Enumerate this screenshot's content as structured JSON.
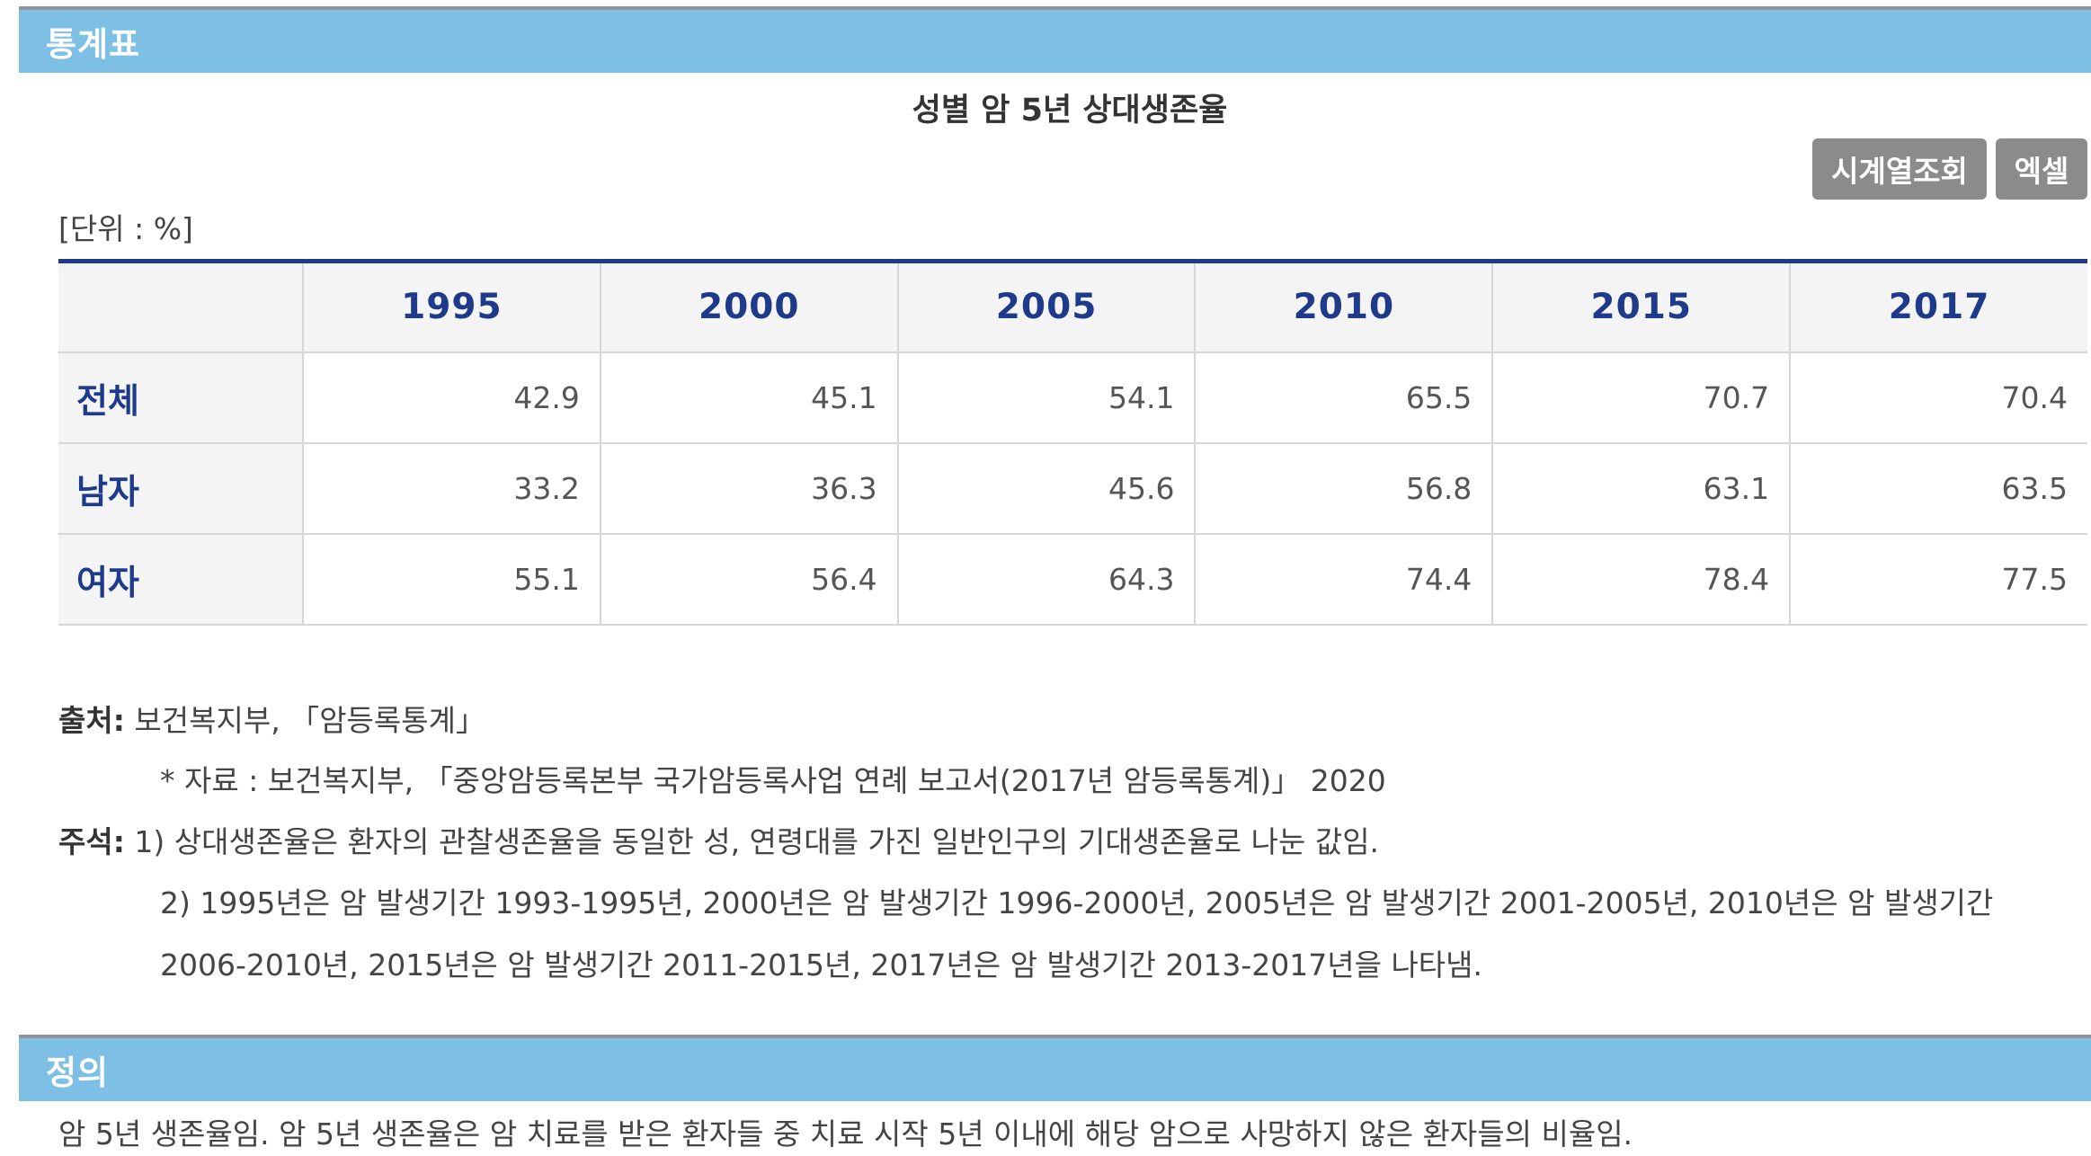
{
  "section_stats": {
    "label": "통계표"
  },
  "table_title": "성별 암 5년 상대생존율",
  "buttons": {
    "timeseries": "시계열조회",
    "excel": "엑셀"
  },
  "unit": "[단위 : %]",
  "table": {
    "headers": [
      "",
      "1995",
      "2000",
      "2005",
      "2010",
      "2015",
      "2017"
    ],
    "rows": [
      {
        "label": "전체",
        "values": [
          "42.9",
          "45.1",
          "54.1",
          "65.5",
          "70.7",
          "70.4"
        ]
      },
      {
        "label": "남자",
        "values": [
          "33.2",
          "36.3",
          "45.6",
          "56.8",
          "63.1",
          "63.5"
        ]
      },
      {
        "label": "여자",
        "values": [
          "55.1",
          "56.4",
          "64.3",
          "74.4",
          "78.4",
          "77.5"
        ]
      }
    ]
  },
  "notes": {
    "source_label": "출처:",
    "source_text": " 보건복지부, 「암등록통계」",
    "source_detail": "* 자료 : 보건복지부, 「중앙암등록본부 국가암등록사업 연례 보고서(2017년 암등록통계)」 2020",
    "remark_label": "주석:",
    "remark1": " 1) 상대생존율은 환자의 관찰생존율을 동일한 성, 연령대를 가진 일반인구의 기대생존율로 나눈 값임.",
    "remark2": "2) 1995년은 암 발생기간 1993-1995년, 2000년은 암 발생기간 1996-2000년, 2005년은 암 발생기간 2001-2005년, 2010년은 암 발생기간",
    "remark3": "2006-2010년, 2015년은 암 발생기간 2011-2015년, 2017년은 암 발생기간 2013-2017년을 나타냄."
  },
  "section_def": {
    "label": "정의"
  },
  "definition_text": "암 5년 생존율임. 암 5년 생존율은 암 치료를 받은 환자들 중 치료 시작 5년 이내에 해당 암으로 사망하지 않은 환자들의 비율임.",
  "colors": {
    "section_bar": "#7ec0e5",
    "header_text": "#1e3a8a",
    "button_bg": "#8b8b8b"
  }
}
